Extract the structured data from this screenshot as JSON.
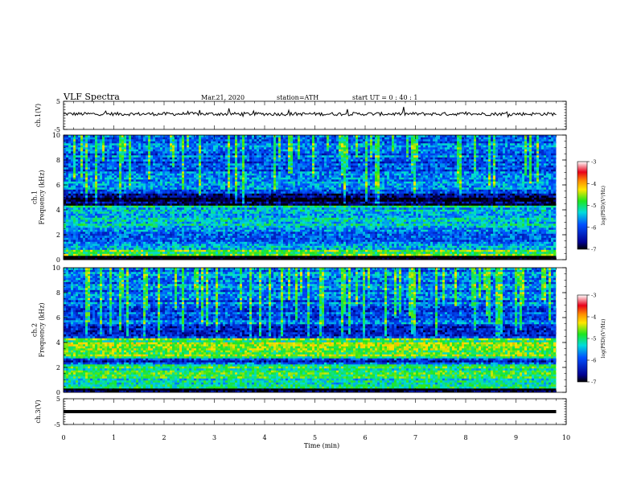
{
  "header": {
    "title": "VLF  Spectra",
    "date": "Mar.21, 2020",
    "station": "station=ATH",
    "start_ut": "start  UT  =   0 : 40 : 1"
  },
  "colors": {
    "ink": "#000000",
    "colormap": [
      "#ffffff",
      "#e8001a",
      "#ff8c00",
      "#ffe600",
      "#1ee61e",
      "#00dcdc",
      "#0050ff",
      "#000090",
      "#000000"
    ]
  },
  "chart_data": [
    {
      "type": "line",
      "ylabel": "ch.1(V)",
      "ylim": [
        -5,
        5
      ],
      "yticks": [
        "5",
        "-5"
      ],
      "x_range_min": [
        0,
        9.8
      ],
      "description_values": {
        "baseline_v": 0.5,
        "noise_amplitude_v": 0.6
      }
    },
    {
      "type": "heatmap",
      "ylabel": "ch.1\nFrequency (kHz)",
      "ylim": [
        0,
        10
      ],
      "yticks": [
        "0",
        "2",
        "4",
        "6",
        "8",
        "10"
      ],
      "x_range_min": [
        0,
        9.8
      ],
      "colorbar": {
        "label": "log(PSD)(V²/Hz)",
        "range": [
          -7,
          -3
        ],
        "ticks": [
          "-3",
          "-4",
          "-5",
          "-6",
          "-7"
        ]
      },
      "bands_khz_logpsd": [
        {
          "from": 0,
          "to": 0.3,
          "level": -7
        },
        {
          "from": 0.3,
          "to": 0.8,
          "level": -5
        },
        {
          "from": 0.8,
          "to": 2.6,
          "level": -5.8
        },
        {
          "from": 2.6,
          "to": 4.3,
          "level": -5.5
        },
        {
          "from": 4.3,
          "to": 5.4,
          "level": -6.8
        },
        {
          "from": 5.4,
          "to": 10,
          "level": -6.0
        }
      ]
    },
    {
      "type": "heatmap",
      "ylabel": "ch.2\nFrequency (kHz)",
      "ylim": [
        0,
        10
      ],
      "yticks": [
        "0",
        "2",
        "4",
        "6",
        "8",
        "10"
      ],
      "x_range_min": [
        0,
        9.8
      ],
      "colorbar": {
        "label": "log(PSD)(V²/Hz)",
        "range": [
          -7,
          -3
        ],
        "ticks": [
          "-3",
          "-4",
          "-5",
          "-6",
          "-7"
        ]
      },
      "bands_khz_logpsd": [
        {
          "from": 0,
          "to": 0.3,
          "level": -7
        },
        {
          "from": 0.3,
          "to": 2.2,
          "level": -5.2
        },
        {
          "from": 2.2,
          "to": 2.8,
          "level": -6.2
        },
        {
          "from": 2.8,
          "to": 4.3,
          "level": -5.0
        },
        {
          "from": 4.3,
          "to": 5.5,
          "level": -6.2
        },
        {
          "from": 5.5,
          "to": 10,
          "level": -6.0
        }
      ]
    },
    {
      "type": "line",
      "ylabel": "ch.3(V)",
      "ylim": [
        -5,
        5
      ],
      "yticks": [
        "5",
        "-5"
      ],
      "x_range_min": [
        0,
        9.8
      ],
      "description_values": {
        "baseline_v": 0.0,
        "noise_amplitude_v": 0.0
      }
    }
  ],
  "x_axis": {
    "label": "Time  (min)",
    "ticks": [
      "0",
      "1",
      "2",
      "3",
      "4",
      "5",
      "6",
      "7",
      "8",
      "9",
      "10"
    ],
    "xlim": [
      0,
      10
    ]
  }
}
